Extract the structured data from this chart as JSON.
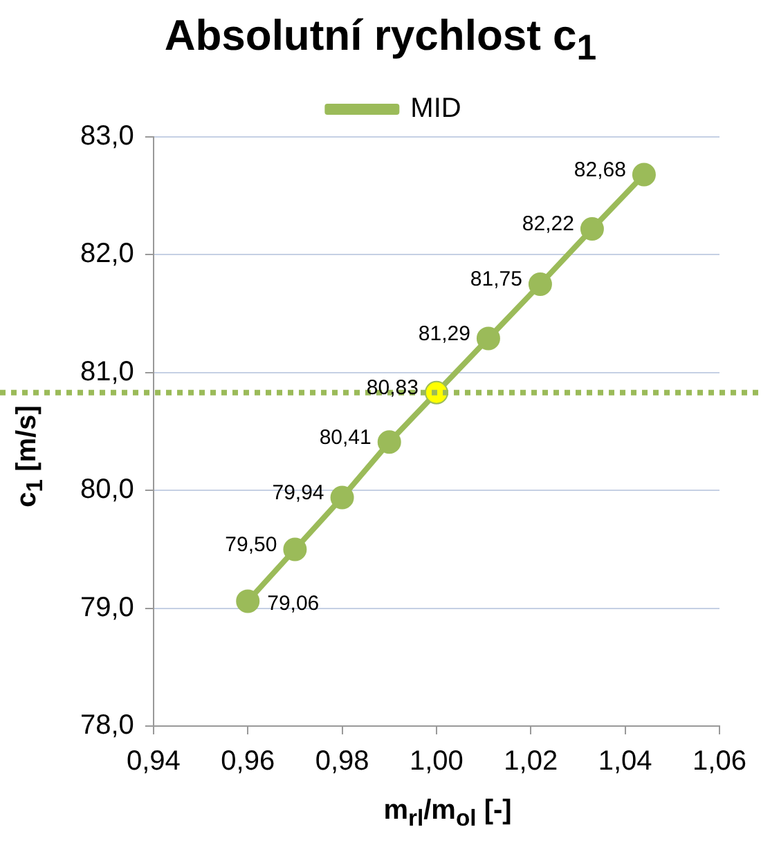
{
  "chart_data": {
    "type": "line",
    "title": "Absolutní rychlost c$_{1}$",
    "xlabel": "m$_{rl}$/m$_{ol}$ [-]",
    "ylabel": "c$_{1}$ [m/s]",
    "x": [
      0.96,
      0.97,
      0.98,
      0.99,
      1.0,
      1.011,
      1.022,
      1.033,
      1.044
    ],
    "series": [
      {
        "name": "MID",
        "color": "#9bbb59",
        "colors": [
          "#9bbb59",
          "#9bbb59",
          "#9bbb59",
          "#9bbb59",
          "#ffff00",
          "#9bbb59",
          "#9bbb59",
          "#9bbb59",
          "#9bbb59"
        ],
        "values": [
          79.06,
          79.5,
          79.94,
          80.41,
          80.83,
          81.29,
          81.75,
          82.22,
          82.68
        ],
        "value_labels": [
          "79,06",
          "79,50",
          "79,94",
          "80,41",
          "80,83",
          "81,29",
          "81,75",
          "82,22",
          "82,68"
        ]
      }
    ],
    "xlim": [
      0.94,
      1.06
    ],
    "xticks": [
      {
        "value": 0.94,
        "label": "0,94"
      },
      {
        "value": 0.96,
        "label": "0,96"
      },
      {
        "value": 0.98,
        "label": "0,98"
      },
      {
        "value": 1.0,
        "label": "1,00"
      },
      {
        "value": 1.02,
        "label": "1,02"
      },
      {
        "value": 1.04,
        "label": "1,04"
      },
      {
        "value": 1.06,
        "label": "1,06"
      }
    ],
    "ylim": [
      78,
      83
    ],
    "yticks": [
      {
        "value": 78,
        "label": "78,0"
      },
      {
        "value": 79,
        "label": "79,0"
      },
      {
        "value": 80,
        "label": "80,0"
      },
      {
        "value": 81,
        "label": "81,0"
      },
      {
        "value": 82,
        "label": "82,0"
      },
      {
        "value": 83,
        "label": "83,0"
      }
    ],
    "ref_lines": [
      {
        "axis": "y",
        "value": 80.83,
        "color": "#9bbb59",
        "line_style": "dotted"
      }
    ],
    "grid": "y",
    "legend": "top",
    "marker": "circle",
    "line_style": "solid"
  }
}
